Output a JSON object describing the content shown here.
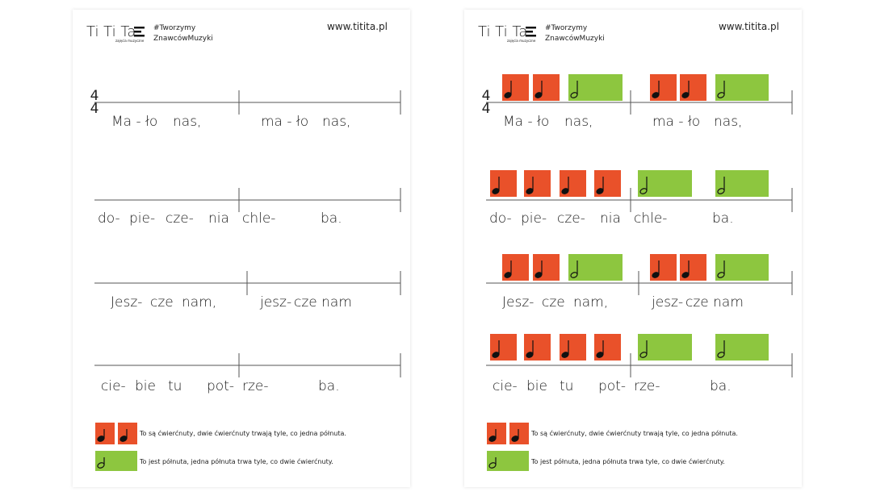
{
  "pages": [
    {
      "header": {
        "brand": "Ti Ti Ta",
        "brand_sub": "zajęcia muzyczne",
        "hashtag": "#Tworzymy",
        "hashtag2": "ZnawcówMuzyki",
        "url": "www.titita.pl"
      },
      "time_signature": {
        "top": "4",
        "bottom": "4"
      },
      "lines": [
        {
          "syllables": [
            "Ma - ło",
            "nas,",
            "ma - ło",
            "nas,"
          ]
        },
        {
          "syllables": [
            "do-",
            "pie-",
            "cze-",
            "nia",
            "chle-",
            "ba."
          ]
        },
        {
          "syllables": [
            "Jesz-",
            "cze",
            "nam,",
            "jesz-",
            "cze nam"
          ]
        },
        {
          "syllables": [
            "cie-",
            "bie",
            "tu",
            "pot-",
            "rze-",
            "ba."
          ]
        }
      ],
      "legend": [
        {
          "text": "To są ćwierćnuty, dwie ćwierćnuty trwają tyle, co jedna półnuta."
        },
        {
          "text": "To jest półnuta, jedna półnuta trwa tyle, co dwie ćwierćnuty."
        }
      ]
    },
    {
      "header": {
        "brand": "Ti Ti Ta",
        "brand_sub": "zajęcia muzyczne",
        "hashtag": "#Tworzymy",
        "hashtag2": "ZnawcówMuzyki",
        "url": "www.titita.pl"
      },
      "time_signature": {
        "top": "4",
        "bottom": "4"
      },
      "lines": [
        {
          "syllables": [
            "Ma - ło",
            "nas,",
            "ma - ło",
            "nas,"
          ]
        },
        {
          "syllables": [
            "do-",
            "pie-",
            "cze-",
            "nia",
            "chle-",
            "ba."
          ]
        },
        {
          "syllables": [
            "Jesz-",
            "cze",
            "nam,",
            "jesz-",
            "cze nam"
          ]
        },
        {
          "syllables": [
            "cie-",
            "bie",
            "tu",
            "pot-",
            "rze-",
            "ba."
          ]
        }
      ],
      "legend": [
        {
          "text": "To są ćwierćnuty, dwie ćwierćnuty trwają tyle, co jedna półnuta."
        },
        {
          "text": "To jest półnuta, jedna półnuta trwa tyle, co dwie ćwierćnuty."
        }
      ]
    }
  ]
}
